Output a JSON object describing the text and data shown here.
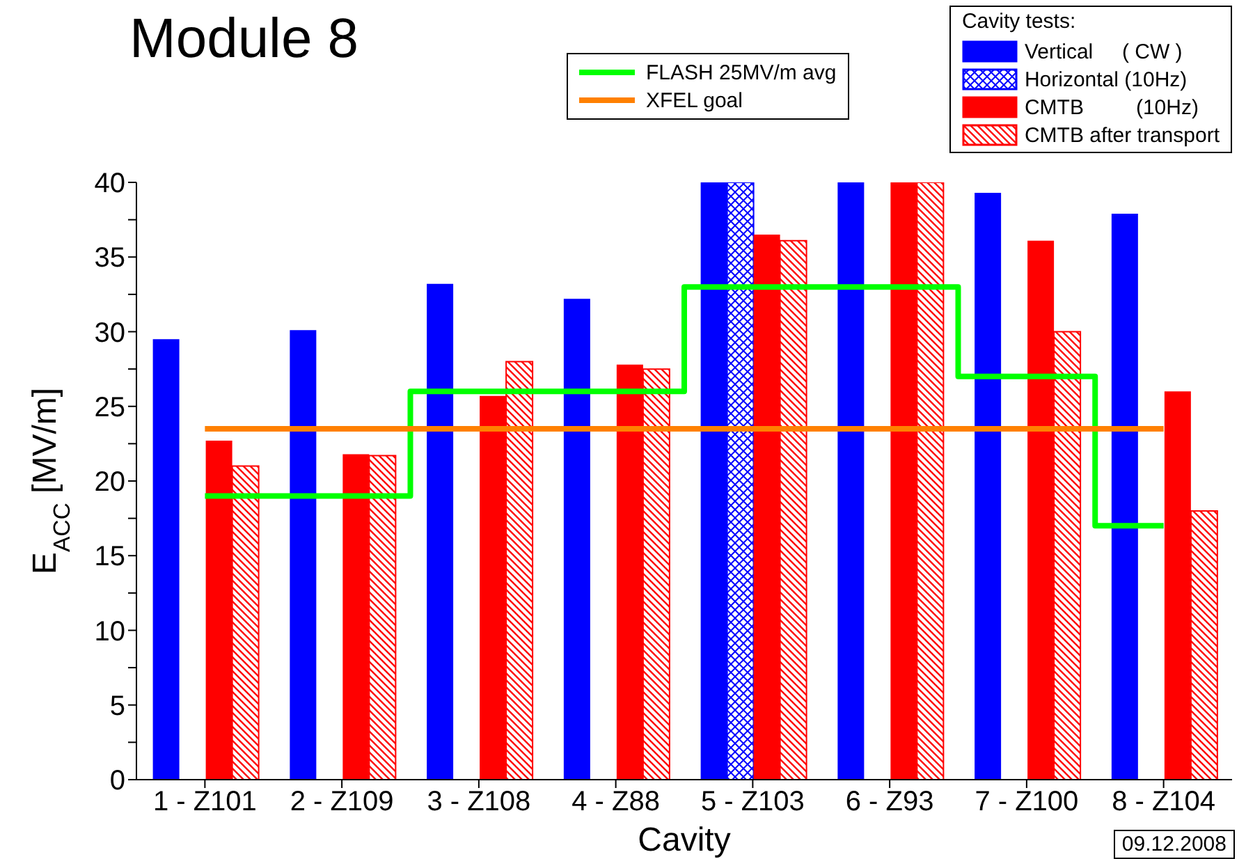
{
  "chart_data": {
    "type": "bar",
    "title": "Module 8",
    "xlabel": "Cavity",
    "ylabel": "E$_{ACC}$ [MV/m]",
    "legend_title": "Cavity tests:",
    "categories": [
      "1 - Z101",
      "2 - Z109",
      "3 - Z108",
      "4 - Z88",
      "5 - Z103",
      "6 - Z93",
      "7 - Z100",
      "8 - Z104"
    ],
    "series": [
      {
        "name": "Vertical     ( CW )",
        "color": "#0000ff",
        "values": [
          29.5,
          30.1,
          33.2,
          32.2,
          40,
          40,
          39.3,
          37.9
        ]
      },
      {
        "name": "Horizontal (10Hz)",
        "color": "#0000ff",
        "values": [
          null,
          null,
          null,
          null,
          40,
          null,
          null,
          null
        ]
      },
      {
        "name": "CMTB         (10Hz)",
        "color": "#ff0000",
        "values": [
          22.7,
          21.8,
          25.7,
          27.8,
          36.5,
          40,
          36.1,
          26
        ]
      },
      {
        "name": "CMTB after transport",
        "color": "#ff0000",
        "values": [
          21,
          21.7,
          28,
          27.5,
          36.1,
          40,
          30,
          18
        ]
      },
      {
        "name": "FLASH 25MV/m avg",
        "type": "step",
        "color": "#00ff00",
        "values": [
          19,
          19,
          26,
          26,
          33,
          33,
          27,
          17
        ]
      },
      {
        "name": "XFEL goal",
        "type": "line",
        "color": "#ff8000",
        "values": [
          23.5,
          23.5,
          23.5,
          23.5,
          23.5,
          23.5,
          23.5,
          23.5
        ]
      }
    ],
    "ylim": [
      0,
      40
    ],
    "yticks": [
      0,
      {
        "value": 2.5,
        "label": null
      },
      5,
      {
        "value": 7.5,
        "label": null
      },
      10,
      {
        "value": 12.5,
        "label": null
      },
      15,
      {
        "value": 17.5,
        "label": null
      },
      20,
      {
        "value": 22.5,
        "label": null
      },
      25,
      {
        "value": 27.5,
        "label": null
      },
      30,
      {
        "value": 32.5,
        "label": null
      },
      35,
      {
        "value": 37.5,
        "label": null
      },
      40
    ],
    "legend": "top right",
    "marker": "none",
    "annotations": [
      "09.12.2008"
    ]
  }
}
